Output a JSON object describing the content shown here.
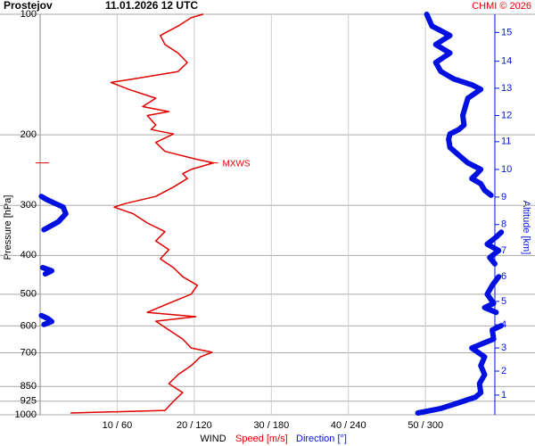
{
  "chart_data": {
    "type": "line",
    "title": "Prostejov",
    "subtitle": "11.01.2026 12 UTC",
    "source": "CHMI © 2026",
    "ylabel": "Pressure [hPa]",
    "y2label": "Altitude [km]",
    "xlabel": "WIND",
    "yscale": "log",
    "ylim": [
      1000,
      100
    ],
    "yticks": [
      100,
      200,
      300,
      400,
      500,
      600,
      700,
      850,
      925,
      1000
    ],
    "xlim": [
      0,
      59
    ],
    "x2lim": [
      0,
      354
    ],
    "xticks": [
      {
        "value": 10,
        "label": "10 / 60"
      },
      {
        "value": 20,
        "label": "20 / 120"
      },
      {
        "value": 30,
        "label": "30 / 180"
      },
      {
        "value": 40,
        "label": "40 / 240"
      },
      {
        "value": 50,
        "label": "50 / 300"
      }
    ],
    "grid": true,
    "altitude_ticks": [
      {
        "value": 1,
        "pressure": 893
      },
      {
        "value": 2,
        "pressure": 778
      },
      {
        "value": 3,
        "pressure": 681
      },
      {
        "value": 4,
        "pressure": 596
      },
      {
        "value": 5,
        "pressure": 521
      },
      {
        "value": 6,
        "pressure": 452
      },
      {
        "value": 7,
        "pressure": 389
      },
      {
        "value": 8,
        "pressure": 335
      },
      {
        "value": 9,
        "pressure": 286
      },
      {
        "value": 10,
        "pressure": 244
      },
      {
        "value": 11,
        "pressure": 208
      },
      {
        "value": 12,
        "pressure": 179
      },
      {
        "value": 13,
        "pressure": 153
      },
      {
        "value": 14,
        "pressure": 131
      },
      {
        "value": 15,
        "pressure": 111
      }
    ],
    "annotation": {
      "text": "MXWS",
      "pressure": 235,
      "value": 22.5,
      "color": "#e00000"
    },
    "series": [
      {
        "name": "Speed [m/s]",
        "color": "#e00000",
        "pressure": [
          990,
          975,
          926,
          880,
          836,
          794,
          754,
          717,
          698,
          681,
          647,
          614,
          584,
          569,
          555,
          527,
          500,
          475,
          452,
          429,
          408,
          387,
          368,
          349,
          332,
          315,
          303,
          297,
          285,
          270,
          257,
          250,
          244,
          235,
          230,
          220,
          209,
          199,
          194,
          189,
          179,
          175,
          170,
          162,
          154,
          148,
          145,
          139,
          132,
          125,
          119,
          113,
          107,
          102,
          100
        ],
        "values": [
          4.0,
          16.2,
          17.3,
          18.5,
          16.7,
          17.9,
          19.6,
          20.8,
          22.3,
          19.6,
          18.5,
          16.7,
          15.0,
          20.2,
          13.9,
          16.7,
          19.6,
          20.4,
          18.5,
          17.3,
          15.6,
          16.7,
          15.0,
          16.2,
          13.9,
          12.1,
          9.6,
          11.0,
          15.0,
          17.3,
          19.1,
          18.5,
          19.6,
          22.5,
          20.2,
          16.2,
          15.0,
          17.3,
          14.4,
          15.0,
          13.9,
          16.7,
          13.3,
          15.0,
          11.5,
          9.2,
          12.1,
          17.9,
          19.1,
          17.9,
          16.2,
          15.6,
          17.9,
          19.6,
          21.1
        ]
      },
      {
        "name": "Direction [°]",
        "color": "#0010e0",
        "axis": "x2",
        "pressure": [
          990,
          964,
          926,
          903,
          880,
          836,
          794,
          754,
          717,
          681,
          647,
          614,
          599,
          null,
          595,
          585,
          575,
          565,
          null,
          555,
          540,
          527,
          500,
          475,
          452,
          null,
          445,
          437,
          429,
          null,
          420,
          405,
          389,
          375,
          360,
          350,
          null,
          345,
          330,
          315,
          303,
          297,
          290,
          285,
          null,
          283,
          275,
          265,
          257,
          250,
          244,
          235,
          225,
          215,
          205,
          199,
          194,
          189,
          179,
          170,
          162,
          154,
          150,
          145,
          139,
          132,
          125,
          119,
          113,
          107,
          100
        ],
        "values": [
          294,
          312,
          329,
          339,
          343,
          342,
          346,
          343,
          346,
          336,
          353,
          352,
          359,
          null,
          3,
          9,
          6,
          1,
          null,
          355,
          346,
          353,
          348,
          352,
          357,
          null,
          4,
          9,
          2,
          null,
          354,
          350,
          357,
          348,
          355,
          359,
          null,
          3,
          14,
          20,
          18,
          12,
          5,
          1,
          null,
          351,
          346,
          343,
          336,
          340,
          343,
          333,
          326,
          319,
          318,
          319,
          326,
          330,
          329,
          331,
          333,
          343,
          336,
          322,
          312,
          308,
          319,
          308,
          319,
          305,
          301
        ]
      }
    ]
  }
}
